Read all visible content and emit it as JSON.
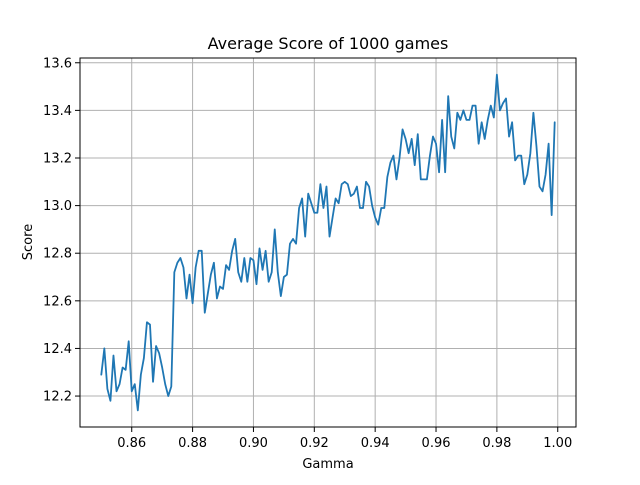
{
  "chart_data": {
    "type": "line",
    "title": "Average Score of 1000 games",
    "xlabel": "Gamma",
    "ylabel": "Score",
    "xlim": [
      0.843,
      1.006
    ],
    "ylim": [
      12.07,
      13.62
    ],
    "xticks": [
      0.86,
      0.88,
      0.9,
      0.92,
      0.94,
      0.96,
      0.98,
      1.0
    ],
    "xtick_labels": [
      "0.86",
      "0.88",
      "0.90",
      "0.92",
      "0.94",
      "0.96",
      "0.98",
      "1.00"
    ],
    "yticks": [
      12.2,
      12.4,
      12.6,
      12.8,
      13.0,
      13.2,
      13.4,
      13.6
    ],
    "ytick_labels": [
      "12.2",
      "12.4",
      "12.6",
      "12.8",
      "13.0",
      "13.2",
      "13.4",
      "13.6"
    ],
    "grid": true,
    "color": "#1f77b4",
    "series": [
      {
        "x": [
          0.85,
          0.851,
          0.852,
          0.853,
          0.854,
          0.855,
          0.856,
          0.857,
          0.858,
          0.859,
          0.86,
          0.861,
          0.862,
          0.863,
          0.864,
          0.865,
          0.866,
          0.867,
          0.868,
          0.869,
          0.87,
          0.871,
          0.872,
          0.873,
          0.874,
          0.875,
          0.876,
          0.877,
          0.878,
          0.879,
          0.88,
          0.881,
          0.882,
          0.883,
          0.884,
          0.885,
          0.886,
          0.887,
          0.888,
          0.889,
          0.89,
          0.891,
          0.892,
          0.893,
          0.894,
          0.895,
          0.896,
          0.897,
          0.898,
          0.899,
          0.9,
          0.901,
          0.902,
          0.903,
          0.904,
          0.905,
          0.906,
          0.907,
          0.908,
          0.909,
          0.91,
          0.911,
          0.912,
          0.913,
          0.914,
          0.915,
          0.916,
          0.917,
          0.918,
          0.919,
          0.92,
          0.921,
          0.922,
          0.923,
          0.924,
          0.925,
          0.926,
          0.927,
          0.928,
          0.929,
          0.93,
          0.931,
          0.932,
          0.933,
          0.934,
          0.935,
          0.936,
          0.937,
          0.938,
          0.939,
          0.94,
          0.941,
          0.942,
          0.943,
          0.944,
          0.945,
          0.946,
          0.947,
          0.948,
          0.949,
          0.95,
          0.951,
          0.952,
          0.953,
          0.954,
          0.955,
          0.956,
          0.957,
          0.958,
          0.959,
          0.96,
          0.961,
          0.962,
          0.963,
          0.964,
          0.965,
          0.966,
          0.967,
          0.968,
          0.969,
          0.97,
          0.971,
          0.972,
          0.973,
          0.974,
          0.975,
          0.976,
          0.977,
          0.978,
          0.979,
          0.98,
          0.981,
          0.982,
          0.983,
          0.984,
          0.985,
          0.986,
          0.987,
          0.988,
          0.989,
          0.99,
          0.991,
          0.992,
          0.993,
          0.994,
          0.995,
          0.996,
          0.997,
          0.998,
          0.999
        ],
        "y": [
          12.29,
          12.4,
          12.23,
          12.18,
          12.37,
          12.22,
          12.25,
          12.32,
          12.31,
          12.43,
          12.22,
          12.25,
          12.14,
          12.29,
          12.36,
          12.51,
          12.5,
          12.26,
          12.41,
          12.38,
          12.32,
          12.25,
          12.2,
          12.24,
          12.72,
          12.76,
          12.78,
          12.74,
          12.61,
          12.71,
          12.59,
          12.74,
          12.81,
          12.81,
          12.55,
          12.63,
          12.71,
          12.76,
          12.61,
          12.66,
          12.65,
          12.75,
          12.73,
          12.81,
          12.86,
          12.72,
          12.68,
          12.78,
          12.68,
          12.78,
          12.77,
          12.67,
          12.82,
          12.73,
          12.81,
          12.68,
          12.72,
          12.9,
          12.72,
          12.62,
          12.7,
          12.71,
          12.84,
          12.86,
          12.84,
          12.99,
          13.03,
          12.87,
          13.05,
          13.01,
          12.97,
          12.97,
          13.09,
          12.99,
          13.08,
          12.87,
          12.95,
          13.03,
          13.01,
          13.09,
          13.1,
          13.09,
          13.04,
          13.05,
          13.08,
          12.99,
          12.99,
          13.1,
          13.08,
          13.0,
          12.95,
          12.92,
          12.99,
          12.99,
          13.12,
          13.18,
          13.21,
          13.11,
          13.2,
          13.32,
          13.28,
          13.22,
          13.28,
          13.17,
          13.3,
          13.11,
          13.11,
          13.11,
          13.21,
          13.29,
          13.26,
          13.14,
          13.36,
          13.14,
          13.46,
          13.29,
          13.24,
          13.39,
          13.36,
          13.4,
          13.36,
          13.36,
          13.42,
          13.42,
          13.26,
          13.35,
          13.28,
          13.36,
          13.42,
          13.37,
          13.55,
          13.4,
          13.43,
          13.45,
          13.29,
          13.35,
          13.19,
          13.21,
          13.21,
          13.09,
          13.13,
          13.22,
          13.39,
          13.25,
          13.08,
          13.06,
          13.13,
          13.26,
          12.96,
          13.35
        ]
      }
    ]
  }
}
